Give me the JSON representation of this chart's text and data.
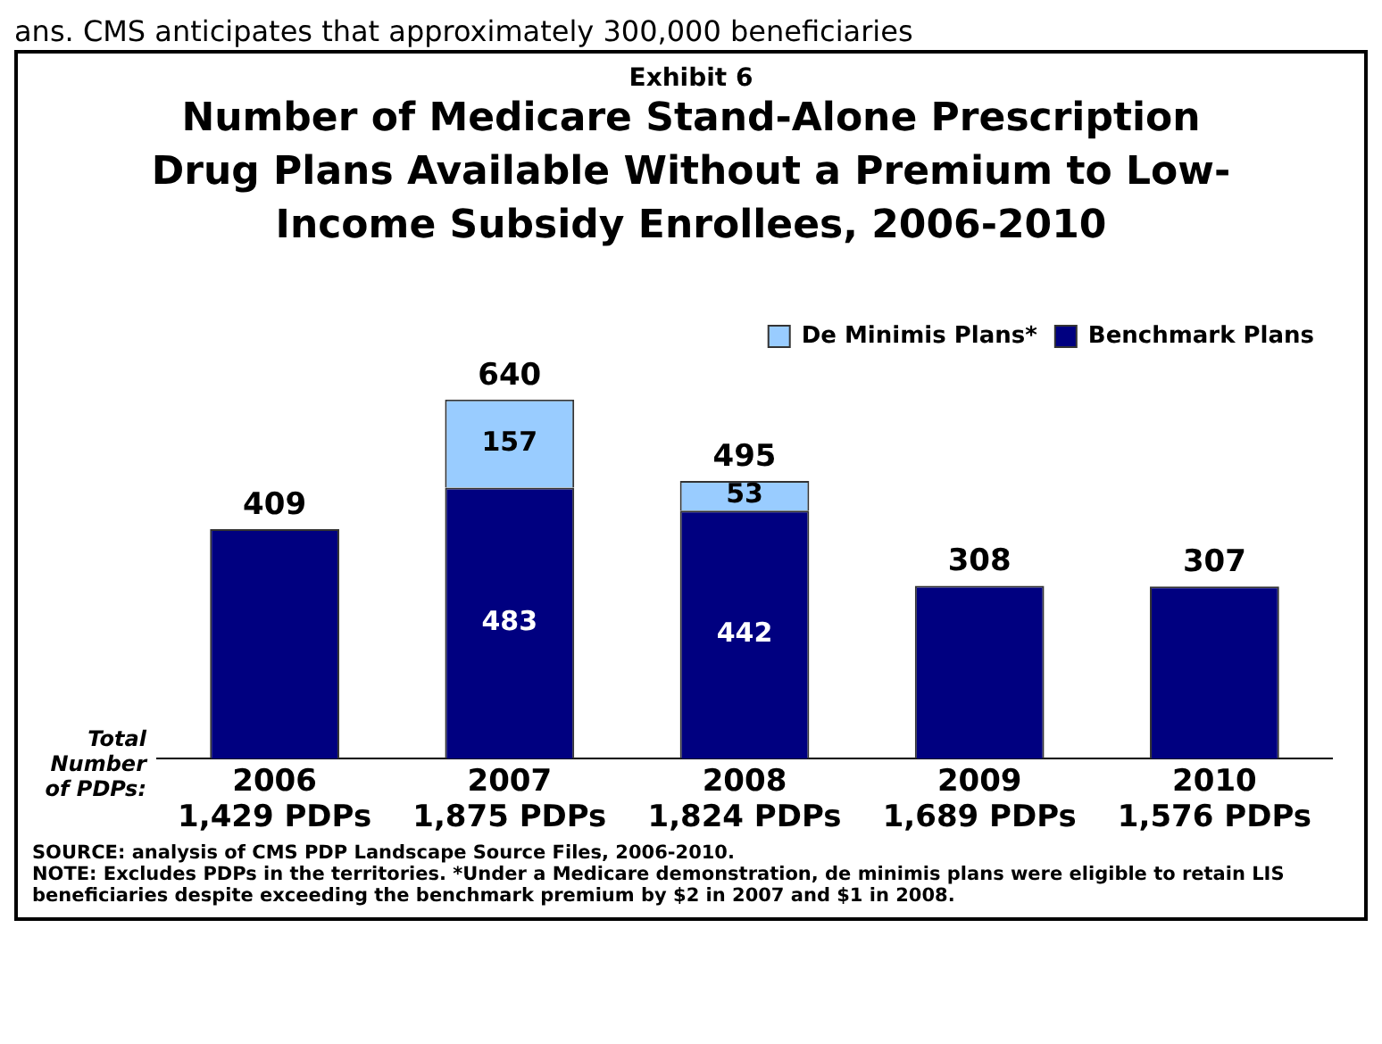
{
  "chart_data": {
    "type": "bar",
    "subtitle": "Exhibit 6",
    "title": "Number of Medicare Stand-Alone Prescription Drug Plans Available Without a Premium to Low-Income Subsidy Enrollees, 2006-2010",
    "categories": [
      "2006\n1,429 PDPs",
      "2007\n1,875 PDPs",
      "2008\n1,824 PDPs",
      "2009\n1,689 PDPs",
      "2010\n1,576 PDPs"
    ],
    "stacked": true,
    "legend": "top right",
    "grid": false,
    "series": [
      {
        "name": "Benchmark Plans",
        "color": "#000080",
        "values": [
          409,
          483,
          442,
          308,
          307
        ],
        "value_labels": [
          null,
          "483",
          "442",
          null,
          null
        ]
      },
      {
        "name": "De Minimis Plans*",
        "color": "#99ccff",
        "values": [
          null,
          157,
          53,
          null,
          null
        ],
        "value_labels": [
          null,
          "157",
          "53",
          null,
          null
        ]
      }
    ],
    "totals": [
      "409",
      "640",
      "495",
      "308",
      "307"
    ],
    "annotations": [
      "ans.    CMS anticipates that approximately 300,000 beneficiaries",
      "Total Number of PDPs:",
      "SOURCE: analysis of CMS PDP Landscape Source Files, 2006-2010.",
      "NOTE: Excludes PDPs in the territories. *Under a Medicare demonstration, de minimis plans were eligible to retain LIS beneficiaries despite exceeding the benchmark premium by $2 in 2007 and $1 in 2008."
    ]
  }
}
